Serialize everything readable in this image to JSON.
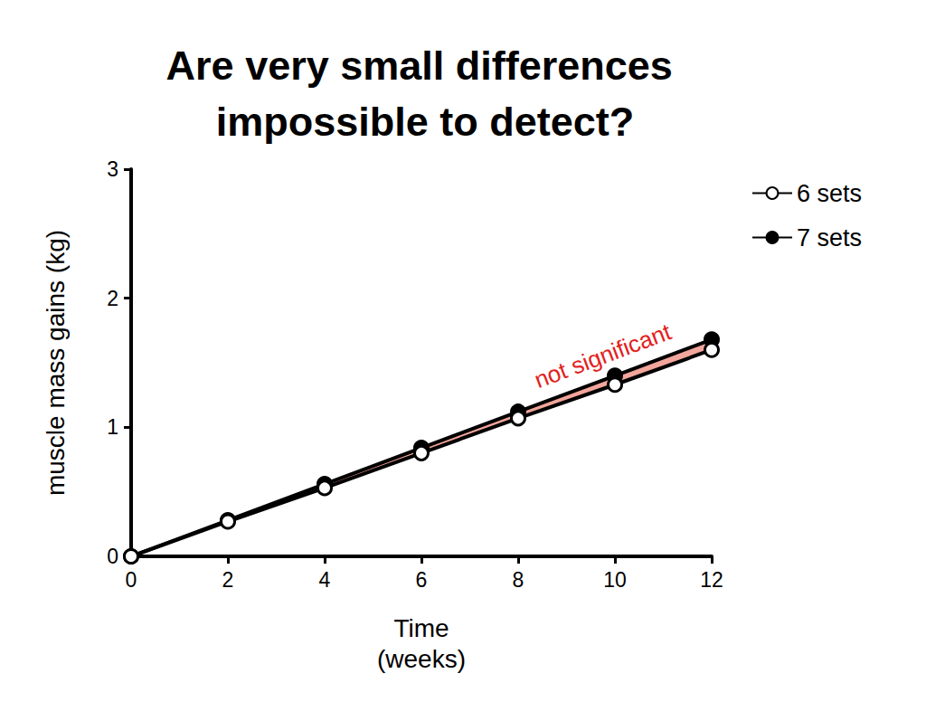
{
  "chart_data": {
    "type": "line",
    "title": "Are very small differences impossible to detect?",
    "x_label": "Time\n(weeks)",
    "y_label": "muscle mass gains (kg)",
    "x": [
      0,
      2,
      4,
      6,
      8,
      10,
      12
    ],
    "series": [
      {
        "name": "6 sets",
        "color": "#000000",
        "marker": "open_circle",
        "values": [
          0,
          0.27,
          0.53,
          0.8,
          1.07,
          1.33,
          1.6
        ]
      },
      {
        "name": "7 sets",
        "color": "#000000",
        "marker": "circle",
        "values": [
          0,
          0.28,
          0.56,
          0.84,
          1.12,
          1.4,
          1.68
        ]
      }
    ],
    "xlim": [
      0,
      12
    ],
    "xticks": [
      0,
      2,
      4,
      6,
      8,
      10,
      12
    ],
    "ylim": [
      0,
      3
    ],
    "yticks": [
      0,
      1,
      2,
      3
    ],
    "annotation": {
      "text": "not significant",
      "color": "#e3211c"
    },
    "grid": false,
    "legend": "upper right"
  }
}
